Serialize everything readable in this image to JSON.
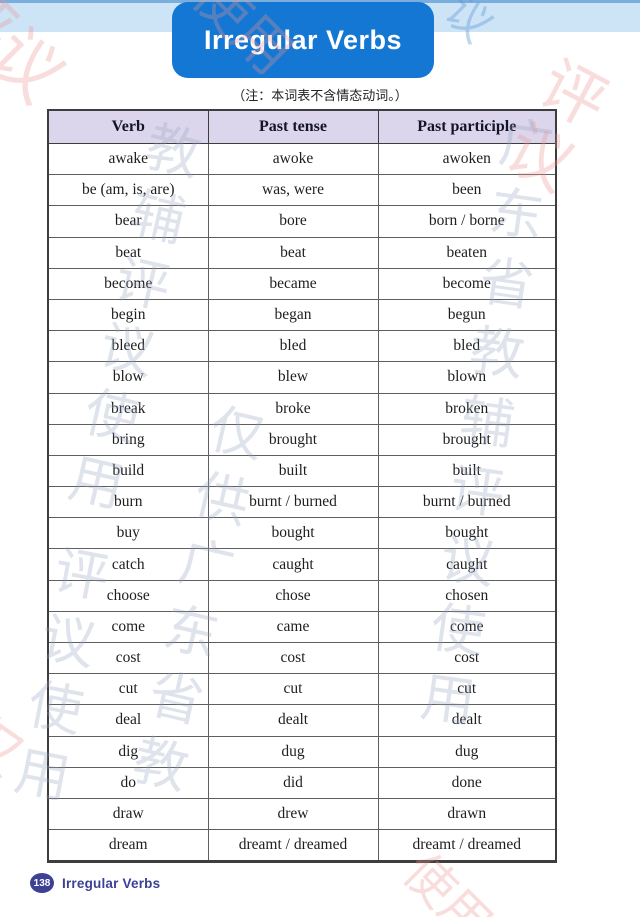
{
  "page": {
    "title": "Irregular Verbs",
    "note": "（注：本词表不含情态动词。）"
  },
  "table": {
    "headers": [
      "Verb",
      "Past tense",
      "Past participle"
    ],
    "rows": [
      [
        "awake",
        "awoke",
        "awoken"
      ],
      [
        "be (am, is, are)",
        "was, were",
        "been"
      ],
      [
        "bear",
        "bore",
        "born / borne"
      ],
      [
        "beat",
        "beat",
        "beaten"
      ],
      [
        "become",
        "became",
        "become"
      ],
      [
        "begin",
        "began",
        "begun"
      ],
      [
        "bleed",
        "bled",
        "bled"
      ],
      [
        "blow",
        "blew",
        "blown"
      ],
      [
        "break",
        "broke",
        "broken"
      ],
      [
        "bring",
        "brought",
        "brought"
      ],
      [
        "build",
        "built",
        "built"
      ],
      [
        "burn",
        "burnt / burned",
        "burnt / burned"
      ],
      [
        "buy",
        "bought",
        "bought"
      ],
      [
        "catch",
        "caught",
        "caught"
      ],
      [
        "choose",
        "chose",
        "chosen"
      ],
      [
        "come",
        "came",
        "come"
      ],
      [
        "cost",
        "cost",
        "cost"
      ],
      [
        "cut",
        "cut",
        "cut"
      ],
      [
        "deal",
        "dealt",
        "dealt"
      ],
      [
        "dig",
        "dug",
        "dug"
      ],
      [
        "do",
        "did",
        "done"
      ],
      [
        "draw",
        "drew",
        "drawn"
      ],
      [
        "dream",
        "dreamt / dreamed",
        "dreamt / dreamed"
      ]
    ]
  },
  "footer": {
    "page_number": "138",
    "label": "Irregular Verbs"
  },
  "watermarks": {
    "top_left": "评议",
    "top_center": "使用",
    "band_mark": "议",
    "top_right": "评议",
    "col_left": "教辅评议使用",
    "col_center": "仅供广东省教",
    "col_right": "广东省教辅评议使用",
    "col_bottom_left": "评议使用",
    "bottom_left": "仅供",
    "bottom_center": "使用"
  },
  "colors": {
    "banner_blue": "#1377d3",
    "top_band_blue": "#cde4f6",
    "header_lavender": "#dcd6ec",
    "footer_indigo": "#3c4193",
    "table_border": "#3d3d3d"
  }
}
